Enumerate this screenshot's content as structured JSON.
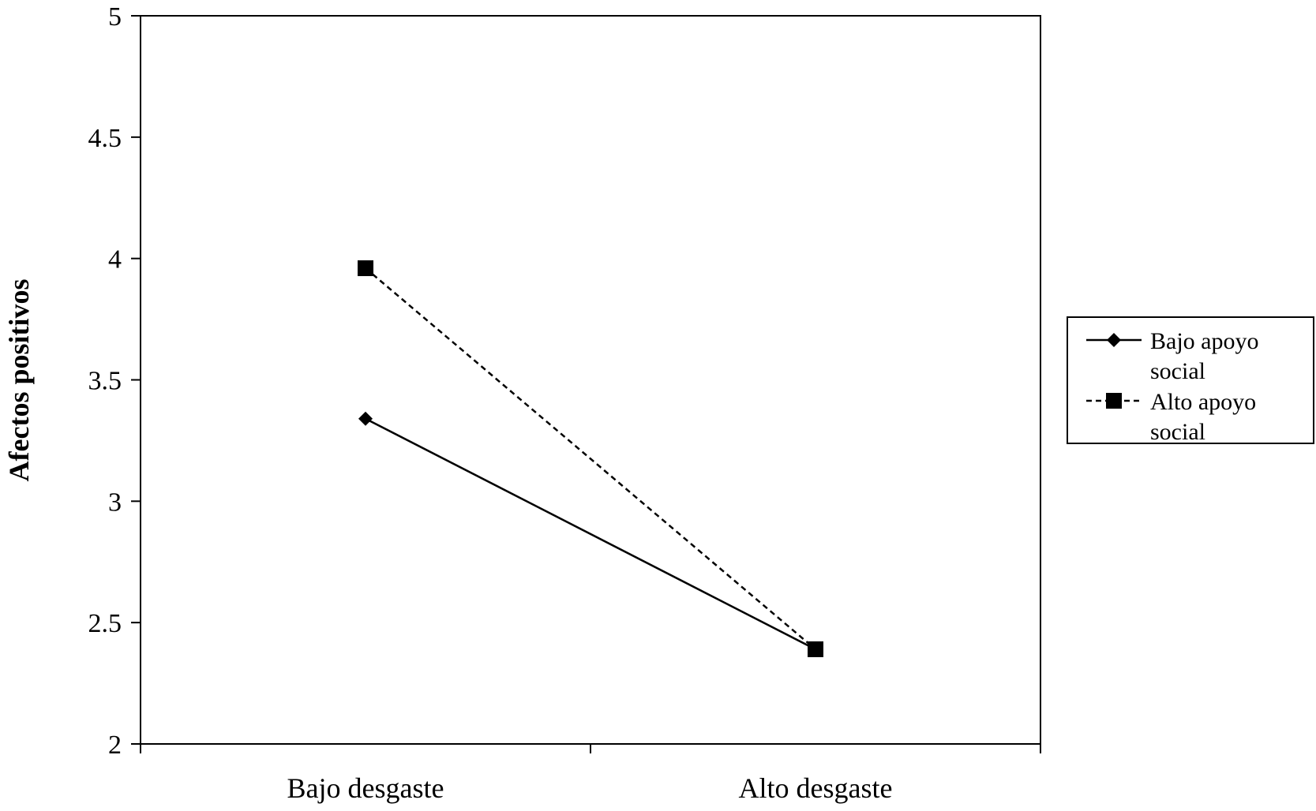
{
  "chart_data": {
    "type": "line",
    "title": "",
    "xlabel": "",
    "ylabel": "Afectos positivos",
    "categories": [
      "Bajo desgaste",
      "Alto desgaste"
    ],
    "ylim": [
      2,
      5
    ],
    "yticks": [
      2,
      2.5,
      3,
      3.5,
      4,
      4.5,
      5
    ],
    "ytick_labels": [
      "2",
      "2.5",
      "3",
      "3.5",
      "4",
      "4.5",
      "5"
    ],
    "grid": false,
    "legend_position": "right",
    "series": [
      {
        "name": "Bajo apoyo social",
        "name_lines": [
          "Bajo apoyo",
          "social"
        ],
        "values": [
          3.34,
          2.39
        ],
        "line_style": "solid",
        "marker": "diamond",
        "color": "#000000"
      },
      {
        "name": "Alto apoyo social",
        "name_lines": [
          "Alto apoyo",
          "social"
        ],
        "values": [
          3.96,
          2.39
        ],
        "line_style": "dashed",
        "marker": "square",
        "color": "#000000"
      }
    ]
  }
}
